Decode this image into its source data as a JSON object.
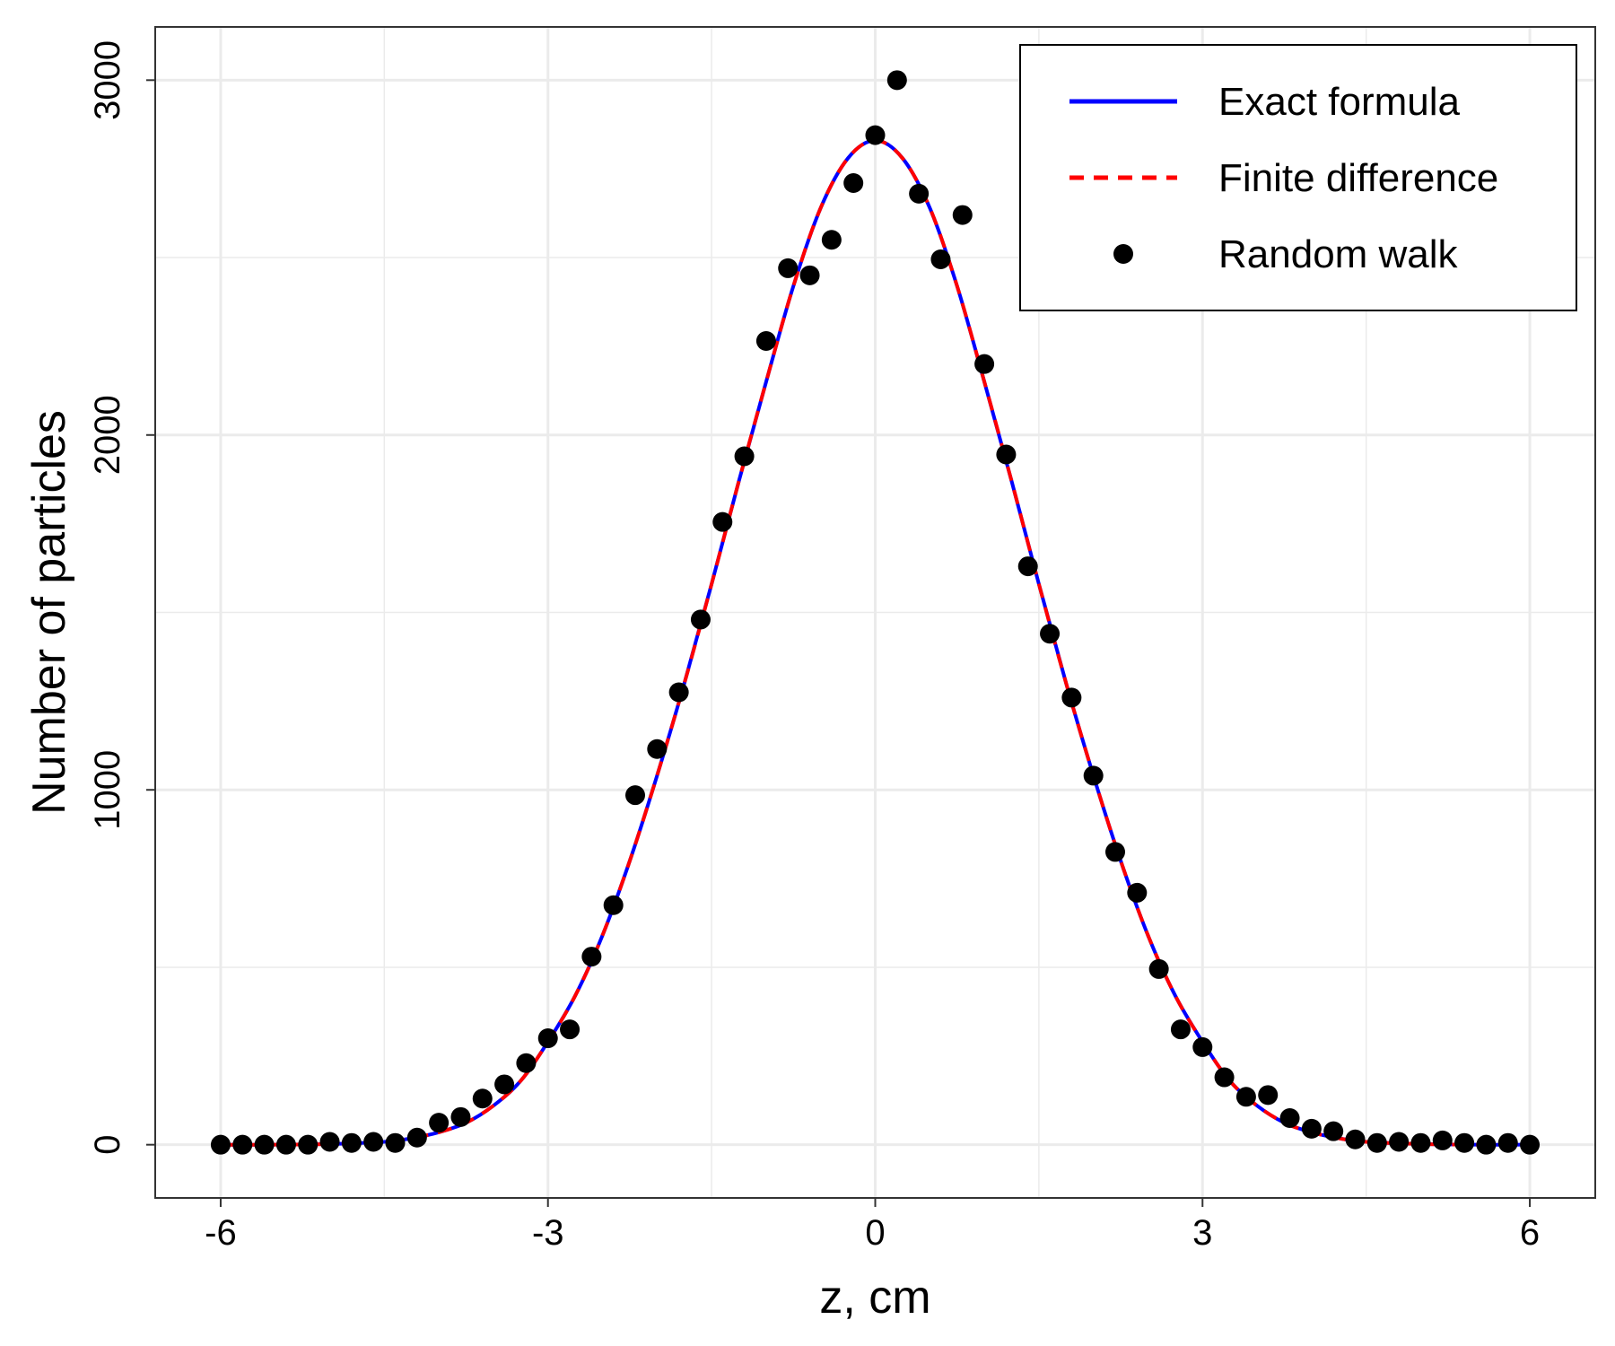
{
  "chart_data": {
    "type": "line",
    "xlabel": "z, cm",
    "ylabel": "Number of particles",
    "xlim": [
      -6.6,
      6.6
    ],
    "ylim": [
      -150,
      3150
    ],
    "x_ticks": [
      -6,
      -3,
      0,
      3,
      6
    ],
    "x_tick_labels": [
      "-6",
      "-3",
      "0",
      "3",
      "6"
    ],
    "y_ticks": [
      0,
      1000,
      2000,
      3000
    ],
    "y_tick_labels": [
      "0",
      "1000",
      "2000",
      "3000"
    ],
    "grid": true,
    "legend_position": "top-right",
    "series": [
      {
        "name": "Exact formula",
        "style": "solid-line",
        "color": "#0000ff",
        "x": [
          -6.0,
          -5.5,
          -5.0,
          -4.5,
          -4.25,
          -4.0,
          -3.75,
          -3.5,
          -3.25,
          -3.0,
          -2.75,
          -2.5,
          -2.25,
          -2.0,
          -1.75,
          -1.5,
          -1.25,
          -1.0,
          -0.75,
          -0.5,
          -0.25,
          0.0,
          0.25,
          0.5,
          0.75,
          1.0,
          1.25,
          1.5,
          1.75,
          2.0,
          2.25,
          2.5,
          2.75,
          3.0,
          3.25,
          3.5,
          3.75,
          4.0,
          4.25,
          4.5,
          5.0,
          5.5,
          6.0
        ],
        "y": [
          0,
          0,
          2,
          8,
          18,
          35,
          62,
          110,
          180,
          290,
          420,
          590,
          800,
          1040,
          1300,
          1580,
          1870,
          2150,
          2420,
          2640,
          2780,
          2830,
          2780,
          2640,
          2420,
          2150,
          1870,
          1580,
          1300,
          1040,
          800,
          590,
          420,
          290,
          180,
          110,
          62,
          35,
          18,
          8,
          2,
          0,
          0
        ]
      },
      {
        "name": "Finite difference",
        "style": "dashed-line",
        "color": "#ff0000",
        "x": [
          -6.0,
          -5.5,
          -5.0,
          -4.5,
          -4.25,
          -4.0,
          -3.75,
          -3.5,
          -3.25,
          -3.0,
          -2.75,
          -2.5,
          -2.25,
          -2.0,
          -1.75,
          -1.5,
          -1.25,
          -1.0,
          -0.75,
          -0.5,
          -0.25,
          0.0,
          0.25,
          0.5,
          0.75,
          1.0,
          1.25,
          1.5,
          1.75,
          2.0,
          2.25,
          2.5,
          2.75,
          3.0,
          3.25,
          3.5,
          3.75,
          4.0,
          4.25,
          4.5,
          5.0,
          5.5,
          6.0
        ],
        "y": [
          0,
          0,
          2,
          8,
          18,
          35,
          62,
          110,
          180,
          290,
          420,
          590,
          800,
          1040,
          1300,
          1580,
          1870,
          2150,
          2420,
          2640,
          2780,
          2830,
          2780,
          2640,
          2420,
          2150,
          1870,
          1580,
          1300,
          1040,
          800,
          590,
          420,
          290,
          180,
          110,
          62,
          35,
          18,
          8,
          2,
          0,
          0
        ]
      },
      {
        "name": "Random walk",
        "style": "points",
        "color": "#000000",
        "x": [
          -6.0,
          -5.8,
          -5.6,
          -5.4,
          -5.2,
          -5.0,
          -4.8,
          -4.6,
          -4.4,
          -4.2,
          -4.0,
          -3.8,
          -3.6,
          -3.4,
          -3.2,
          -3.0,
          -2.8,
          -2.6,
          -2.4,
          -2.2,
          -2.0,
          -1.8,
          -1.6,
          -1.4,
          -1.2,
          -1.0,
          -0.8,
          -0.6,
          -0.4,
          -0.2,
          0.0,
          0.2,
          0.4,
          0.6,
          0.8,
          1.0,
          1.2,
          1.4,
          1.6,
          1.8,
          2.0,
          2.2,
          2.4,
          2.6,
          2.8,
          3.0,
          3.2,
          3.4,
          3.6,
          3.8,
          4.0,
          4.2,
          4.4,
          4.6,
          4.8,
          5.0,
          5.2,
          5.4,
          5.6,
          5.8,
          6.0
        ],
        "y": [
          0,
          0,
          0,
          0,
          0,
          8,
          5,
          8,
          5,
          20,
          62,
          78,
          130,
          170,
          230,
          300,
          325,
          530,
          675,
          985,
          1115,
          1275,
          1480,
          1755,
          1940,
          2265,
          2470,
          2450,
          2550,
          2710,
          2845,
          3000,
          2680,
          2495,
          2620,
          2200,
          1945,
          1630,
          1440,
          1260,
          1040,
          825,
          710,
          495,
          325,
          275,
          190,
          135,
          140,
          75,
          45,
          38,
          15,
          5,
          8,
          5,
          12,
          5,
          0,
          5,
          0
        ]
      }
    ]
  }
}
